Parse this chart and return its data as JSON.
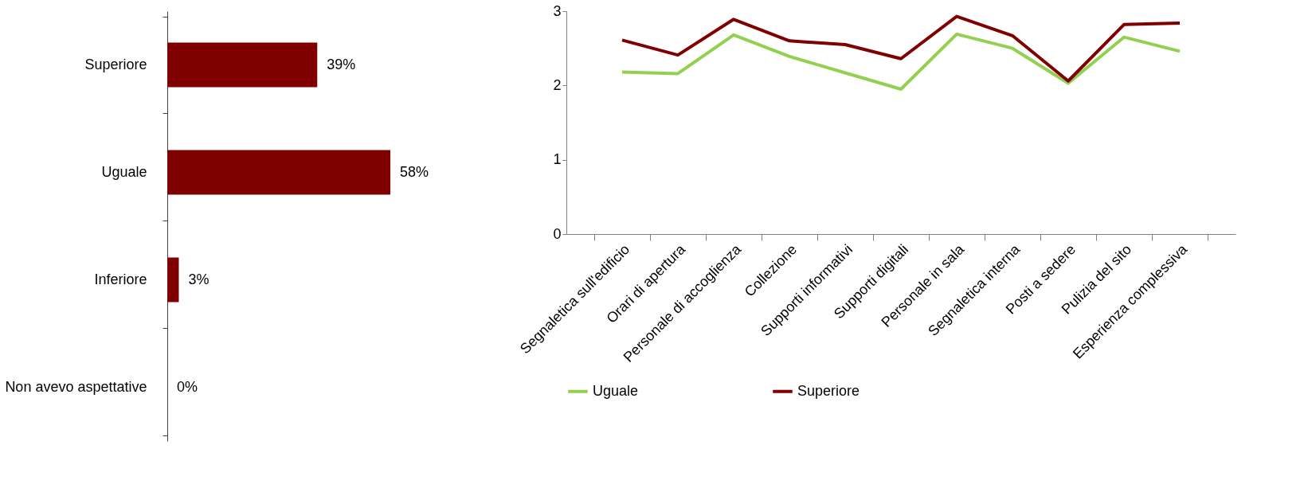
{
  "chart_data": [
    {
      "type": "bar",
      "orientation": "horizontal",
      "categories": [
        "Superiore",
        "Uguale",
        "Inferiore",
        "Non avevo aspettative"
      ],
      "values": [
        39,
        58,
        3,
        0
      ],
      "color": "#800000",
      "value_labels": [
        "39%",
        "58%",
        "3%",
        "0%"
      ]
    },
    {
      "type": "line",
      "categories": [
        "Segnaletica sull'edificio",
        "Orari di apertura",
        "Personale di accoglienza",
        "Collezione",
        "Supporti informativi",
        "Supporti digitali",
        "Personale in sala",
        "Segnaletica interna",
        "Posti a sedere",
        "Pulizia del sito",
        "Esperienza complessiva"
      ],
      "series": [
        {
          "name": "Uguale",
          "color": "#92d050",
          "values": [
            2.18,
            2.16,
            2.68,
            2.39,
            2.17,
            1.95,
            2.69,
            2.5,
            2.03,
            2.65,
            2.46
          ]
        },
        {
          "name": "Superiore",
          "color": "#800000",
          "values": [
            2.61,
            2.41,
            2.89,
            2.6,
            2.55,
            2.36,
            2.93,
            2.67,
            2.06,
            2.82,
            2.84
          ]
        }
      ],
      "ylim": [
        0,
        3
      ],
      "yticks": [
        0,
        1,
        2,
        3
      ],
      "grid": false,
      "legend": "bottom"
    }
  ]
}
